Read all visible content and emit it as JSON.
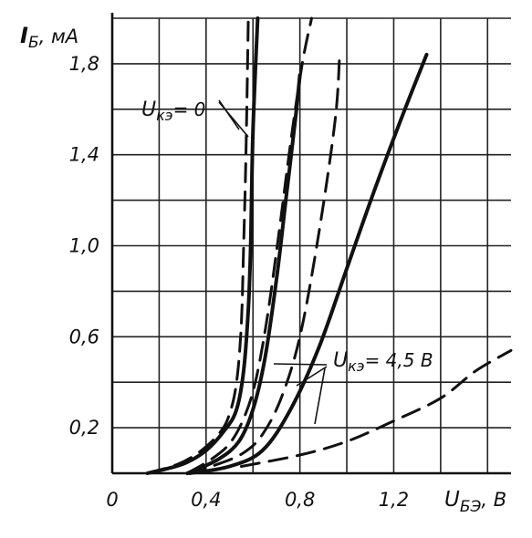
{
  "chart_data": {
    "type": "line",
    "title": "",
    "ylabel": "I_Б, мА",
    "xlabel": "U_БЭ, В",
    "ylabel_main": "I",
    "ylabel_sub": "Б",
    "ylabel_unit": ", мА",
    "xlabel_main": "U",
    "xlabel_sub": "БЭ",
    "xlabel_unit": ", В",
    "xlim": [
      0,
      1.7
    ],
    "ylim": [
      0,
      2.0
    ],
    "x_ticks": [
      0,
      0.4,
      0.8,
      1.2
    ],
    "x_tick_labels": [
      "0",
      "0,4",
      "0,8",
      "1,2"
    ],
    "y_ticks": [
      0.2,
      0.6,
      1.0,
      1.4,
      1.8
    ],
    "y_tick_labels": [
      "0,2",
      "0,6",
      "1,0",
      "1,4",
      "1,8"
    ],
    "grid": true,
    "annotations": [
      {
        "main": "U",
        "sub": "кэ",
        "text": "= 0",
        "x": 0.12,
        "y": 1.6
      },
      {
        "main": "U",
        "sub": "кэ",
        "text": "= 4,5 В",
        "x": 0.98,
        "y": 0.5
      }
    ],
    "series": [
      {
        "style": "dashed",
        "points": [
          [
            0.15,
            0
          ],
          [
            0.28,
            0.04
          ],
          [
            0.38,
            0.1
          ],
          [
            0.46,
            0.18
          ],
          [
            0.5,
            0.26
          ],
          [
            0.53,
            0.4
          ],
          [
            0.55,
            0.65
          ],
          [
            0.56,
            1.0
          ],
          [
            0.57,
            1.4
          ],
          [
            0.58,
            2.0
          ]
        ]
      },
      {
        "style": "solid",
        "points": [
          [
            0.15,
            0
          ],
          [
            0.3,
            0.04
          ],
          [
            0.4,
            0.1
          ],
          [
            0.48,
            0.19
          ],
          [
            0.53,
            0.28
          ],
          [
            0.56,
            0.45
          ],
          [
            0.58,
            0.72
          ],
          [
            0.59,
            1.0
          ],
          [
            0.6,
            1.5
          ],
          [
            0.62,
            2.0
          ]
        ]
      },
      {
        "style": "dashed",
        "points": [
          [
            0.32,
            0
          ],
          [
            0.42,
            0.06
          ],
          [
            0.5,
            0.13
          ],
          [
            0.56,
            0.24
          ],
          [
            0.61,
            0.4
          ],
          [
            0.66,
            0.68
          ],
          [
            0.71,
            1.05
          ],
          [
            0.76,
            1.45
          ],
          [
            0.81,
            1.8
          ],
          [
            0.85,
            2.0
          ]
        ]
      },
      {
        "style": "solid",
        "points": [
          [
            0.32,
            0
          ],
          [
            0.45,
            0.06
          ],
          [
            0.54,
            0.14
          ],
          [
            0.6,
            0.28
          ],
          [
            0.65,
            0.5
          ],
          [
            0.7,
            0.85
          ],
          [
            0.74,
            1.2
          ],
          [
            0.78,
            1.55
          ],
          [
            0.8,
            1.75
          ]
        ]
      },
      {
        "style": "dashed",
        "points": [
          [
            0.32,
            0
          ],
          [
            0.45,
            0.04
          ],
          [
            0.56,
            0.09
          ],
          [
            0.64,
            0.17
          ],
          [
            0.72,
            0.33
          ],
          [
            0.8,
            0.6
          ],
          [
            0.88,
            1.05
          ],
          [
            0.95,
            1.55
          ],
          [
            0.97,
            1.85
          ]
        ]
      },
      {
        "style": "solid",
        "points": [
          [
            0.33,
            0
          ],
          [
            0.5,
            0.03
          ],
          [
            0.64,
            0.1
          ],
          [
            0.76,
            0.28
          ],
          [
            0.88,
            0.55
          ],
          [
            1.0,
            0.9
          ],
          [
            1.12,
            1.25
          ],
          [
            1.24,
            1.58
          ],
          [
            1.34,
            1.84
          ]
        ]
      },
      {
        "style": "dashed",
        "points": [
          [
            0.55,
            0.03
          ],
          [
            0.8,
            0.08
          ],
          [
            1.0,
            0.14
          ],
          [
            1.2,
            0.23
          ],
          [
            1.4,
            0.33
          ],
          [
            1.55,
            0.45
          ],
          [
            1.7,
            0.54
          ]
        ]
      }
    ]
  }
}
